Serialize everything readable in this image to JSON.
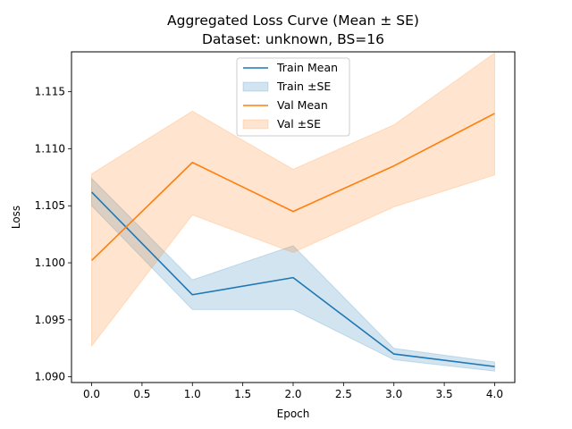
{
  "chart_data": {
    "type": "line",
    "title": "Aggregated Loss Curve (Mean ± SE)",
    "subtitle": "Dataset: unknown, BS=16",
    "xlabel": "Epoch",
    "ylabel": "Loss",
    "x": [
      0,
      1,
      2,
      3,
      4
    ],
    "xlim": [
      -0.2,
      4.2
    ],
    "ylim": [
      1.0895,
      1.1185
    ],
    "x_ticks": [
      "0.0",
      "0.5",
      "1.0",
      "1.5",
      "2.0",
      "2.5",
      "3.0",
      "3.5",
      "4.0"
    ],
    "y_ticks": [
      "1.090",
      "1.095",
      "1.100",
      "1.105",
      "1.110",
      "1.115"
    ],
    "grid": false,
    "legend_position": "top-center",
    "series": [
      {
        "name": "Train Mean",
        "band_name": "Train ±SE",
        "color": "#1f77b4",
        "values": [
          1.1062,
          1.0972,
          1.0987,
          1.092,
          1.0909
        ],
        "lower": [
          1.105,
          1.0959,
          1.0959,
          1.0915,
          1.0905
        ],
        "upper": [
          1.1074,
          1.0985,
          1.1015,
          1.0925,
          1.0913
        ]
      },
      {
        "name": "Val Mean",
        "band_name": "Val ±SE",
        "color": "#ff7f0e",
        "values": [
          1.1002,
          1.1088,
          1.1045,
          1.1085,
          1.1131
        ],
        "lower": [
          1.0927,
          1.1042,
          1.1009,
          1.1049,
          1.1077
        ],
        "upper": [
          1.1078,
          1.1133,
          1.1082,
          1.1121,
          1.1184
        ]
      }
    ]
  }
}
